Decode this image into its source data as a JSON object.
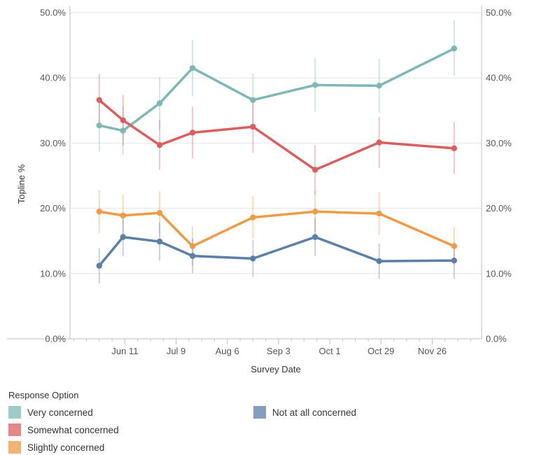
{
  "chart_data": {
    "type": "line",
    "title": "",
    "xlabel": "Survey Date",
    "ylabel": "Topline %",
    "x_tick_labels": [
      "Jun 11",
      "Jul 9",
      "Aug 6",
      "Sep 3",
      "Oct 1",
      "Oct 29",
      "Nov 26"
    ],
    "y_tick_labels": [
      "0.0%",
      "10.0%",
      "20.0%",
      "30.0%",
      "40.0%",
      "50.0%"
    ],
    "y_ticks": [
      0,
      10,
      20,
      30,
      40,
      50
    ],
    "ylim": [
      0,
      50
    ],
    "xlim": [
      "2021-05-12",
      "2021-12-23"
    ],
    "x_tick_dates": [
      "2021-06-11",
      "2021-07-09",
      "2021-08-06",
      "2021-09-03",
      "2021-10-01",
      "2021-10-29",
      "2021-11-26"
    ],
    "x_minor_tick_dates": [
      "2021-05-14",
      "2021-05-21",
      "2021-05-28",
      "2021-06-04",
      "2021-06-18",
      "2021-06-25",
      "2021-07-02",
      "2021-07-16",
      "2021-07-23",
      "2021-07-30",
      "2021-08-13",
      "2021-08-20",
      "2021-08-27",
      "2021-09-10",
      "2021-09-17",
      "2021-09-24",
      "2021-10-08",
      "2021-10-15",
      "2021-10-22",
      "2021-11-05",
      "2021-11-12",
      "2021-11-19",
      "2021-12-03",
      "2021-12-10",
      "2021-12-17"
    ],
    "grid": true,
    "legend_title": "Response Option",
    "legend_position": "bottom",
    "series": [
      {
        "name": "Very concerned",
        "color": "#7db8b4",
        "x": [
          "2021-05-28",
          "2021-06-10",
          "2021-06-30",
          "2021-07-18",
          "2021-08-20",
          "2021-09-23",
          "2021-10-28",
          "2021-12-08"
        ],
        "values": [
          32.7,
          31.9,
          36.1,
          41.5,
          36.6,
          38.9,
          38.8,
          44.5
        ],
        "err_low": [
          28.7,
          28.2,
          32.1,
          37.2,
          32.5,
          34.8,
          34.7,
          40.3
        ],
        "err_high": [
          36.5,
          35.6,
          40.1,
          45.8,
          40.7,
          43.1,
          42.9,
          48.9
        ]
      },
      {
        "name": "Somewhat concerned",
        "color": "#d95f5f",
        "x": [
          "2021-05-28",
          "2021-06-10",
          "2021-06-30",
          "2021-07-18",
          "2021-08-20",
          "2021-09-23",
          "2021-10-28",
          "2021-12-08"
        ],
        "values": [
          36.6,
          33.5,
          29.7,
          31.6,
          32.5,
          25.9,
          30.1,
          29.2
        ],
        "err_low": [
          32.6,
          29.6,
          25.9,
          27.6,
          28.5,
          22.1,
          26.2,
          25.3
        ],
        "err_high": [
          40.6,
          37.4,
          33.5,
          35.6,
          36.5,
          29.7,
          34.0,
          33.2
        ]
      },
      {
        "name": "Slightly concerned",
        "color": "#ef9a45",
        "x": [
          "2021-05-28",
          "2021-06-10",
          "2021-06-30",
          "2021-07-18",
          "2021-08-20",
          "2021-09-23",
          "2021-10-28",
          "2021-12-08"
        ],
        "values": [
          19.5,
          18.9,
          19.3,
          14.2,
          18.6,
          19.5,
          19.2,
          14.2
        ],
        "err_low": [
          16.2,
          15.7,
          16.0,
          11.2,
          15.3,
          16.3,
          15.9,
          11.3
        ],
        "err_high": [
          22.8,
          22.1,
          22.6,
          17.2,
          21.9,
          22.7,
          22.5,
          17.1
        ]
      },
      {
        "name": "Not at all concerned",
        "color": "#5b7fa8",
        "x": [
          "2021-05-28",
          "2021-06-10",
          "2021-06-30",
          "2021-07-18",
          "2021-08-20",
          "2021-09-23",
          "2021-10-28",
          "2021-12-08"
        ],
        "values": [
          11.2,
          15.6,
          14.9,
          12.7,
          12.3,
          15.6,
          11.9,
          12.0
        ],
        "err_low": [
          8.5,
          12.7,
          12.0,
          10.0,
          9.5,
          12.7,
          9.2,
          9.2
        ],
        "err_high": [
          13.9,
          18.5,
          17.8,
          15.4,
          15.1,
          18.5,
          14.6,
          14.8
        ]
      }
    ]
  }
}
